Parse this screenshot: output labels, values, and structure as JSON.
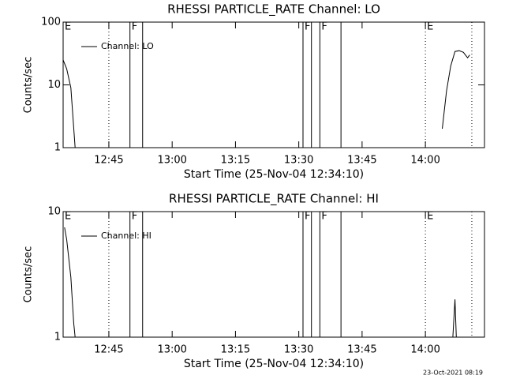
{
  "chart_data": [
    {
      "type": "line",
      "title": "RHESSI PARTICLE_RATE Channel: LO",
      "xlabel": "Start Time (25-Nov-04 12:34:10)",
      "ylabel": "Counts/sec",
      "log_y": true,
      "ylim": [
        1,
        100
      ],
      "yticks": [
        1,
        10,
        100
      ],
      "xlim": [
        "12:34:10",
        "14:14"
      ],
      "xticks": [
        "12:45",
        "13:00",
        "13:15",
        "13:30",
        "13:45",
        "14:00"
      ],
      "x": [
        "12:34:10",
        "12:35",
        "12:36",
        "12:37",
        "14:03:30",
        "14:04",
        "14:05",
        "14:06",
        "14:07",
        "14:08",
        "14:09",
        "14:10",
        "14:10:30"
      ],
      "series": [
        {
          "name": "Channel: LO",
          "color": "#000000",
          "values": [
            25,
            18,
            9,
            1,
            null,
            2,
            8,
            20,
            34,
            35,
            33,
            27,
            30
          ]
        }
      ],
      "markers": [
        {
          "x": "12:34:10",
          "label": "E",
          "style": "solid"
        },
        {
          "x": "12:45",
          "style": "dotted"
        },
        {
          "x": "12:50",
          "label": "F",
          "style": "solid"
        },
        {
          "x": "12:53",
          "style": "solid"
        },
        {
          "x": "13:31",
          "label": "F",
          "style": "solid"
        },
        {
          "x": "13:33",
          "style": "solid"
        },
        {
          "x": "13:35",
          "label": "F",
          "style": "solid"
        },
        {
          "x": "13:40",
          "style": "solid"
        },
        {
          "x": "14:00",
          "label": "E",
          "style": "dotted"
        },
        {
          "x": "14:11",
          "style": "dotted"
        }
      ]
    },
    {
      "type": "line",
      "title": "RHESSI PARTICLE_RATE Channel: HI",
      "xlabel": "Start Time (25-Nov-04 12:34:10)",
      "ylabel": "Counts/sec",
      "log_y": true,
      "ylim": [
        1,
        10
      ],
      "yticks": [
        1,
        10
      ],
      "xlim": [
        "12:34:10",
        "14:14"
      ],
      "xticks": [
        "12:45",
        "13:00",
        "13:15",
        "13:30",
        "13:45",
        "14:00"
      ],
      "x": [
        "12:34:30",
        "12:35",
        "12:36",
        "12:36:40",
        "12:37",
        "14:06:30",
        "14:07",
        "14:07:20"
      ],
      "series": [
        {
          "name": "Channel: HI",
          "color": "#000000",
          "values": [
            7.5,
            6,
            3,
            1.3,
            1,
            1,
            2,
            1
          ]
        }
      ],
      "markers": [
        {
          "x": "12:34:10",
          "label": "E",
          "style": "solid"
        },
        {
          "x": "12:45",
          "style": "dotted"
        },
        {
          "x": "12:50",
          "label": "F",
          "style": "solid"
        },
        {
          "x": "12:53",
          "style": "solid"
        },
        {
          "x": "13:31",
          "label": "F",
          "style": "solid"
        },
        {
          "x": "13:33",
          "style": "solid"
        },
        {
          "x": "13:35",
          "label": "F",
          "style": "solid"
        },
        {
          "x": "13:40",
          "style": "solid"
        },
        {
          "x": "14:00",
          "label": "E",
          "style": "dotted"
        },
        {
          "x": "14:11",
          "style": "dotted"
        }
      ]
    }
  ],
  "footer": "23-Oct-2021 08:19"
}
